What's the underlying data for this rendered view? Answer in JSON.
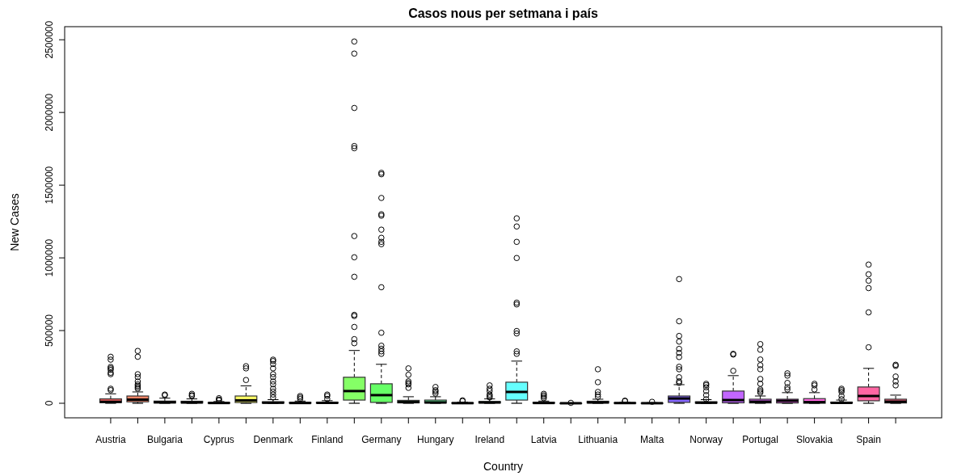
{
  "chart_data": {
    "type": "box",
    "title": "Casos nous per setmana i país",
    "xlabel": "Country",
    "ylabel": "New Cases",
    "categories": [
      "Austria",
      null,
      "Bulgaria",
      null,
      "Cyprus",
      null,
      "Denmark",
      null,
      "Finland",
      null,
      "Germany",
      null,
      "Hungary",
      null,
      "Ireland",
      null,
      "Latvia",
      null,
      "Lithuania",
      null,
      "Malta",
      null,
      "Norway",
      null,
      "Portugal",
      null,
      "Slovakia",
      null,
      "Spain",
      null
    ],
    "colors": [
      "#ff6666",
      "#ff8566",
      "#ffa366",
      "#ffc266",
      "#ffe066",
      "#ffff66",
      "#e0ff66",
      "#c2ff66",
      "#a3ff66",
      "#85ff66",
      "#66ff66",
      "#66ff85",
      "#66ffa3",
      "#66ffc2",
      "#66ffe0",
      "#66ffff",
      "#66e0ff",
      "#66c2ff",
      "#66a3ff",
      "#6685ff",
      "#6666ff",
      "#8566ff",
      "#a366ff",
      "#c266ff",
      "#e066ff",
      "#ff66ff",
      "#ff66e0",
      "#ff66c2",
      "#ff66a3",
      "#ff6685"
    ],
    "boxes": [
      {
        "low": 100,
        "q1": 5000,
        "median": 10000,
        "q3": 30000,
        "high": 65000,
        "outliers": [
          90000,
          100000,
          200000,
          210000,
          230000,
          240000,
          250000,
          300000,
          320000
        ]
      },
      {
        "low": 100,
        "q1": 10000,
        "median": 25000,
        "q3": 50000,
        "high": 78000,
        "outliers": [
          100000,
          110000,
          120000,
          130000,
          150000,
          180000,
          200000,
          320000,
          360000
        ]
      },
      {
        "low": 100,
        "q1": 2000,
        "median": 7000,
        "q3": 15000,
        "high": 35000,
        "outliers": [
          55000,
          60000
        ]
      },
      {
        "low": 100,
        "q1": 2000,
        "median": 6000,
        "q3": 14000,
        "high": 30000,
        "outliers": [
          50000,
          55000,
          65000
        ]
      },
      {
        "low": 100,
        "q1": 500,
        "median": 2000,
        "q3": 5000,
        "high": 12000,
        "outliers": [
          20000,
          25000,
          35000
        ]
      },
      {
        "low": 100,
        "q1": 5000,
        "median": 20000,
        "q3": 50000,
        "high": 120000,
        "outliers": [
          160000,
          240000,
          255000
        ]
      },
      {
        "low": 100,
        "q1": 1000,
        "median": 4000,
        "q3": 10000,
        "high": 25000,
        "outliers": [
          40000,
          60000,
          80000,
          100000,
          130000,
          150000,
          180000,
          200000,
          240000,
          270000,
          290000,
          300000
        ]
      },
      {
        "low": 100,
        "q1": 500,
        "median": 2000,
        "q3": 6000,
        "high": 15000,
        "outliers": [
          30000,
          40000,
          50000
        ]
      },
      {
        "low": 100,
        "q1": 500,
        "median": 3000,
        "q3": 7000,
        "high": 18000,
        "outliers": [
          30000,
          50000,
          60000
        ]
      },
      {
        "low": 100,
        "q1": 22000,
        "median": 84000,
        "q3": 179000,
        "high": 363000,
        "outliers": [
          413000,
          441000,
          525000,
          600000,
          608000,
          870000,
          1004000,
          1150000,
          1754000,
          1769000,
          2031000,
          2405000,
          2488000
        ]
      },
      {
        "low": 100,
        "q1": 6000,
        "median": 56000,
        "q3": 134000,
        "high": 268000,
        "outliers": [
          340000,
          357000,
          375000,
          396000,
          485000,
          798000,
          1094000,
          1110000,
          1138000,
          1194000,
          1290000,
          1300000,
          1412000,
          1575000,
          1585000
        ]
      },
      {
        "low": 100,
        "q1": 3000,
        "median": 8000,
        "q3": 20000,
        "high": 45000,
        "outliers": [
          106000,
          130000,
          140000,
          151000,
          196000,
          240000
        ]
      },
      {
        "low": 100,
        "q1": 2000,
        "median": 6000,
        "q3": 22000,
        "high": 45000,
        "outliers": [
          67000,
          80000,
          90000,
          112000
        ]
      },
      {
        "low": 100,
        "q1": 200,
        "median": 1000,
        "q3": 3000,
        "high": 8000,
        "outliers": [
          15000,
          20000
        ]
      },
      {
        "low": 100,
        "q1": 2000,
        "median": 6000,
        "q3": 12000,
        "high": 30000,
        "outliers": [
          40000,
          50000,
          60000,
          84000,
          100000,
          123000
        ]
      },
      {
        "low": 100,
        "q1": 22000,
        "median": 78000,
        "q3": 145000,
        "high": 290000,
        "outliers": [
          340000,
          357000,
          480000,
          497000,
          680000,
          692000,
          999000,
          1110000,
          1216000,
          1272000
        ]
      },
      {
        "low": 100,
        "q1": 500,
        "median": 2000,
        "q3": 6000,
        "high": 15000,
        "outliers": [
          35000,
          45000,
          55000,
          65000
        ]
      },
      {
        "low": 100,
        "q1": 200,
        "median": 300,
        "q3": 500,
        "high": 900,
        "outliers": [
          3000
        ]
      },
      {
        "low": 100,
        "q1": 2000,
        "median": 6000,
        "q3": 14000,
        "high": 28000,
        "outliers": [
          45000,
          60000,
          78000,
          145000,
          234000
        ]
      },
      {
        "low": 100,
        "q1": 500,
        "median": 1500,
        "q3": 3500,
        "high": 8000,
        "outliers": [
          15000,
          18000
        ]
      },
      {
        "low": 100,
        "q1": 100,
        "median": 500,
        "q3": 1500,
        "high": 4000,
        "outliers": [
          10000
        ]
      },
      {
        "low": 100,
        "q1": 6000,
        "median": 33000,
        "q3": 50000,
        "high": 128000,
        "outliers": [
          140000,
          151000,
          179000,
          234000,
          251000,
          318000,
          346000,
          374000,
          424000,
          463000,
          564000,
          854000
        ]
      },
      {
        "low": 100,
        "q1": 1000,
        "median": 4000,
        "q3": 10000,
        "high": 25000,
        "outliers": [
          28000,
          56000,
          84000,
          110000,
          125000,
          134000
        ]
      },
      {
        "low": 100,
        "q1": 3000,
        "median": 22000,
        "q3": 84000,
        "high": 190000,
        "outliers": [
          223000,
          335000,
          340000
        ]
      },
      {
        "low": 100,
        "q1": 2000,
        "median": 11000,
        "q3": 28000,
        "high": 50000,
        "outliers": [
          73000,
          84000,
          95000,
          134000,
          167000,
          234000,
          262000,
          301000,
          368000,
          407000
        ]
      },
      {
        "low": 100,
        "q1": 2000,
        "median": 17000,
        "q3": 28000,
        "high": 73000,
        "outliers": [
          95000,
          110000,
          140000,
          190000,
          206000
        ]
      },
      {
        "low": 100,
        "q1": 200,
        "median": 8000,
        "q3": 32000,
        "high": 73000,
        "outliers": [
          95000,
          123000,
          134000
        ]
      },
      {
        "low": 100,
        "q1": 1000,
        "median": 3000,
        "q3": 8000,
        "high": 22000,
        "outliers": [
          28000,
          50000,
          78000,
          90000,
          100000
        ]
      },
      {
        "low": 100,
        "q1": 17000,
        "median": 50000,
        "q3": 112000,
        "high": 240000,
        "outliers": [
          385000,
          625000,
          792000,
          843000,
          887000,
          954000
        ]
      },
      {
        "low": 100,
        "q1": 2000,
        "median": 11000,
        "q3": 28000,
        "high": 56000,
        "outliers": [
          123000,
          150000,
          184000,
          257000,
          265000
        ]
      }
    ],
    "ylim": [
      -100000,
      2590000
    ],
    "yticks": [
      0,
      500000,
      1000000,
      1500000,
      2000000,
      2500000
    ]
  }
}
